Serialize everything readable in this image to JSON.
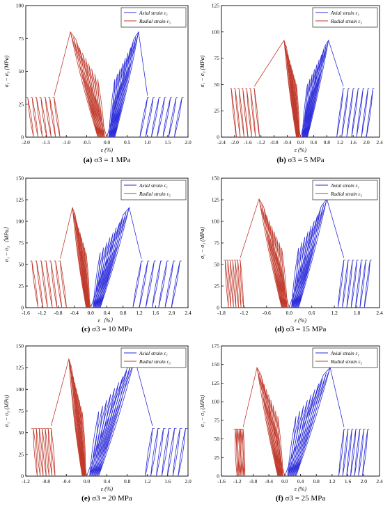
{
  "figure": {
    "background": "#ffffff",
    "axial_color": "#2b2bd9",
    "radial_color": "#c0392b",
    "y_label": "σ₁ − σ₃ (MPa)",
    "x_label": "ε (%)",
    "legend_axial": "Axial strain ε₁",
    "legend_radial": "Radial strain ε₃"
  },
  "chart_data": [
    {
      "type": "line",
      "panel": "a",
      "caption_letter": "(a)",
      "caption_text": "σ3 = 1 MPa",
      "xlim": [
        -2.0,
        2.0
      ],
      "xticks": [
        "-2.0",
        "-1.5",
        "-1.0",
        "-0.5",
        "0.0",
        "0.5",
        "1.0",
        "1.5",
        "2.0"
      ],
      "xtick_values": [
        -2.0,
        -1.5,
        -1.0,
        -0.5,
        0.0,
        0.5,
        1.0,
        1.5,
        2.0
      ],
      "ylim": [
        0,
        100
      ],
      "yticks": [
        "0",
        "25",
        "50",
        "75",
        "100"
      ],
      "ytick_values": [
        0,
        25,
        50,
        75,
        100
      ],
      "legend_placement": "top-right",
      "series": [
        {
          "name": "Axial strain ε₁",
          "color": "#2b2bd9",
          "peak_strain": 0.78,
          "peak_stress": 80,
          "residual_stress": 30,
          "residual_strain_end": 1.85,
          "post_peak_strain": 1.0
        },
        {
          "name": "Radial strain ε₃",
          "color": "#c0392b",
          "peak_strain": -0.9,
          "peak_stress": 80,
          "residual_stress": 30,
          "residual_strain_end": -1.95,
          "post_peak_strain": -1.3
        }
      ]
    },
    {
      "type": "line",
      "panel": "b",
      "caption_letter": "(b)",
      "caption_text": "σ3 = 5 MPa",
      "xlim": [
        -2.4,
        2.4
      ],
      "xticks": [
        "-2.4",
        "-2.0",
        "-1.6",
        "-1.2",
        "-0.8",
        "-0.4",
        "0.0",
        "0.4",
        "0.8",
        "1.2",
        "1.6",
        "2.0",
        "2.4"
      ],
      "xtick_values": [
        -2.4,
        -2.0,
        -1.6,
        -1.2,
        -0.8,
        -0.4,
        0.0,
        0.4,
        0.8,
        1.2,
        1.6,
        2.0,
        2.4
      ],
      "ylim": [
        0,
        125
      ],
      "yticks": [
        "0",
        "25",
        "50",
        "75",
        "100",
        "125"
      ],
      "ytick_values": [
        0,
        25,
        50,
        75,
        100,
        125
      ],
      "legend_placement": "top-right",
      "series": [
        {
          "name": "Axial strain ε₁",
          "color": "#2b2bd9",
          "peak_strain": 0.85,
          "peak_stress": 92,
          "residual_stress": 46,
          "residual_strain_end": 2.2,
          "post_peak_strain": 1.3
        },
        {
          "name": "Radial strain ε₃",
          "color": "#c0392b",
          "peak_strain": -0.5,
          "peak_stress": 92,
          "residual_stress": 46,
          "residual_strain_end": -2.1,
          "post_peak_strain": -1.4
        }
      ]
    },
    {
      "type": "line",
      "panel": "c",
      "caption_letter": "(c)",
      "caption_text": "σ3 = 10 MPa",
      "xlim": [
        -1.6,
        2.4
      ],
      "xticks": [
        "-1.6",
        "-1.2",
        "-0.8",
        "-0.4",
        "0.0",
        "0.4",
        "0.8",
        "1.2",
        "1.6",
        "2.0",
        "2.4"
      ],
      "xtick_values": [
        -1.6,
        -1.2,
        -0.8,
        -0.4,
        0.0,
        0.4,
        0.8,
        1.2,
        1.6,
        2.0,
        2.4
      ],
      "x_label_text": "ε（%）",
      "ylim": [
        0,
        150
      ],
      "yticks": [
        "0",
        "25",
        "50",
        "75",
        "100",
        "125",
        "150"
      ],
      "ytick_values": [
        0,
        25,
        50,
        75,
        100,
        125,
        150
      ],
      "y_label_text": "σ₁ − σ₃（MPa）",
      "legend_placement": "top-right",
      "series": [
        {
          "name": "Axial strain ε₁",
          "color": "#2b2bd9",
          "peak_strain": 0.95,
          "peak_stress": 116,
          "residual_stress": 54,
          "residual_strain_end": 2.2,
          "post_peak_strain": 1.25
        },
        {
          "name": "Radial strain ε₃",
          "color": "#c0392b",
          "peak_strain": -0.45,
          "peak_stress": 116,
          "residual_stress": 54,
          "residual_strain_end": -1.45,
          "post_peak_strain": -0.75
        }
      ]
    },
    {
      "type": "line",
      "panel": "d",
      "caption_letter": "(d)",
      "caption_text": "σ3 = 15 MPa",
      "xlim": [
        -1.8,
        2.4
      ],
      "xticks": [
        "-1.8",
        "-1.2",
        "-0.6",
        "0.0",
        "0.6",
        "1.2",
        "1.8",
        "2.4"
      ],
      "xtick_values": [
        -1.8,
        -1.2,
        -0.6,
        0.0,
        0.6,
        1.2,
        1.8,
        2.4
      ],
      "ylim": [
        0,
        150
      ],
      "yticks": [
        "0",
        "25",
        "50",
        "75",
        "100",
        "125",
        "150"
      ],
      "ytick_values": [
        0,
        25,
        50,
        75,
        100,
        125,
        150
      ],
      "legend_placement": "top-right",
      "series": [
        {
          "name": "Axial strain ε₁",
          "color": "#2b2bd9",
          "peak_strain": 1.0,
          "peak_stress": 126,
          "residual_stress": 55,
          "residual_strain_end": 2.15,
          "post_peak_strain": 1.45
        },
        {
          "name": "Radial strain ε₃",
          "color": "#c0392b",
          "peak_strain": -0.8,
          "peak_stress": 126,
          "residual_stress": 55,
          "residual_strain_end": -1.7,
          "post_peak_strain": -1.3
        }
      ]
    },
    {
      "type": "line",
      "panel": "e",
      "caption_letter": "(e)",
      "caption_text": "σ3 = 20 MPa",
      "xlim": [
        -1.2,
        2.0
      ],
      "xticks": [
        "-1.2",
        "-0.8",
        "-0.4",
        "0.0",
        "0.4",
        "0.8",
        "1.2",
        "1.6",
        "2.0"
      ],
      "xtick_values": [
        -1.2,
        -0.8,
        -0.4,
        0.0,
        0.4,
        0.8,
        1.2,
        1.6,
        2.0
      ],
      "ylim": [
        0,
        150
      ],
      "yticks": [
        "0",
        "25",
        "50",
        "75",
        "100",
        "125",
        "150"
      ],
      "ytick_values": [
        0,
        25,
        50,
        75,
        100,
        125,
        150
      ],
      "legend_placement": "top-right",
      "series": [
        {
          "name": "Axial strain ε₁",
          "color": "#2b2bd9",
          "peak_strain": 0.95,
          "peak_stress": 135,
          "residual_stress": 55,
          "residual_strain_end": 1.95,
          "post_peak_strain": 1.3
        },
        {
          "name": "Radial strain ε₃",
          "color": "#c0392b",
          "peak_strain": -0.35,
          "peak_stress": 135,
          "residual_stress": 55,
          "residual_strain_end": -1.05,
          "post_peak_strain": -0.7
        }
      ]
    },
    {
      "type": "line",
      "panel": "f",
      "caption_letter": "(f)",
      "caption_text": "σ3 = 25 MPa",
      "xlim": [
        -1.6,
        2.4
      ],
      "xticks": [
        "-1.6",
        "-1.2",
        "-0.8",
        "-0.4",
        "0.0",
        "0.4",
        "0.8",
        "1.2",
        "1.6",
        "2.0",
        "2.4"
      ],
      "xtick_values": [
        -1.6,
        -1.2,
        -0.8,
        -0.4,
        0.0,
        0.4,
        0.8,
        1.2,
        1.6,
        2.0,
        2.4
      ],
      "ylim": [
        0,
        175
      ],
      "yticks": [
        "0",
        "25",
        "50",
        "75",
        "100",
        "125",
        "150",
        "175"
      ],
      "ytick_values": [
        0,
        25,
        50,
        75,
        100,
        125,
        150,
        175
      ],
      "legend_placement": "top-right",
      "series": [
        {
          "name": "Axial strain ε₁",
          "color": "#2b2bd9",
          "peak_strain": 1.15,
          "peak_stress": 146,
          "residual_stress": 63,
          "residual_strain_end": 2.1,
          "post_peak_strain": 1.5
        },
        {
          "name": "Radial strain ε₃",
          "color": "#c0392b",
          "peak_strain": -0.7,
          "peak_stress": 146,
          "residual_stress": 63,
          "residual_strain_end": -1.25,
          "post_peak_strain": -1.05
        }
      ]
    }
  ]
}
